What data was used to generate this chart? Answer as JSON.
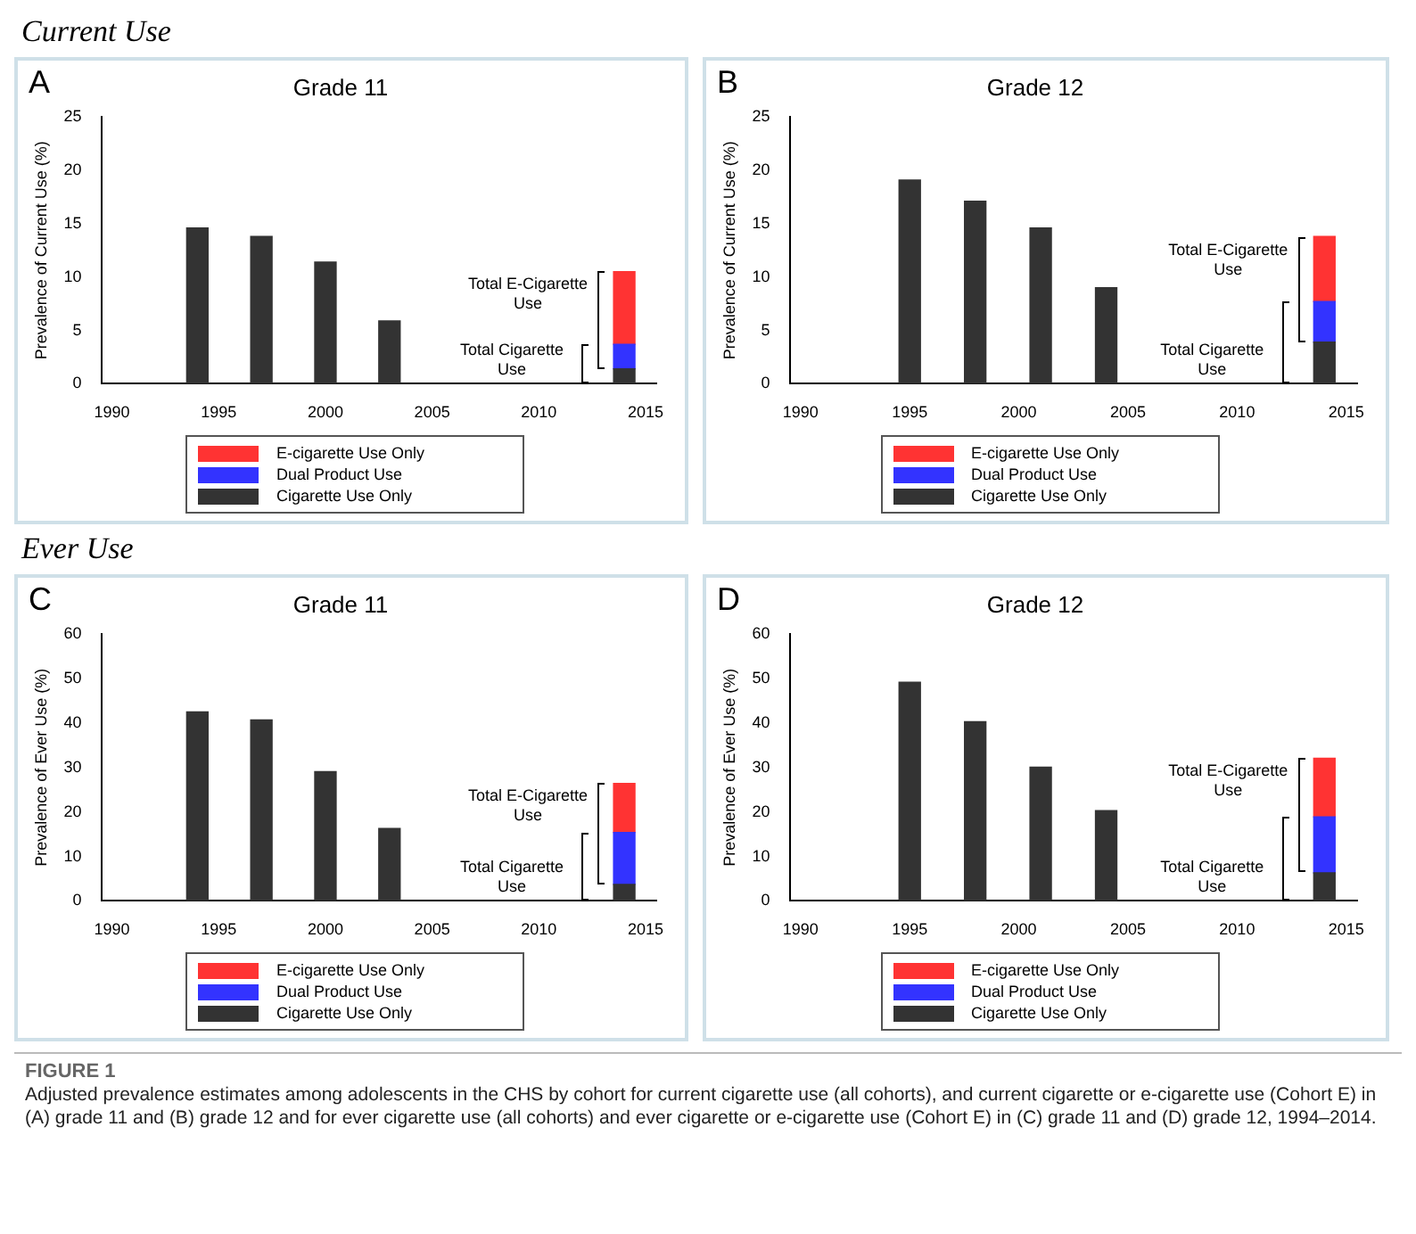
{
  "chart_data": [
    {
      "type": "bar",
      "title": "Grade 11",
      "subtitle": "A",
      "ylabel": "Prevalence of Current Use (%)",
      "stacked": true,
      "legend": "bottom",
      "xlim": [
        1989.5,
        2015.5
      ],
      "xticks": [
        1990,
        1995,
        2000,
        2005,
        2010,
        2015
      ],
      "ylim": [
        0,
        25
      ],
      "yticks": [
        0,
        5,
        10,
        15,
        20,
        25
      ],
      "x": [
        1994,
        1997,
        2000,
        2003,
        2014
      ],
      "series": [
        {
          "name": "Cigarette Use Only",
          "color": "#333333",
          "values": [
            14.6,
            13.8,
            11.4,
            5.9,
            1.4
          ]
        },
        {
          "name": "Dual Product Use",
          "color": "#3333ff",
          "values": [
            null,
            null,
            null,
            null,
            2.3
          ]
        },
        {
          "name": "E-cigarette Use Only",
          "color": "#ff3333",
          "values": [
            null,
            null,
            null,
            null,
            6.8
          ]
        }
      ],
      "annotations": [
        "Current Use",
        "Total E-Cigarette Use",
        "Total Cigarette Use"
      ]
    },
    {
      "type": "bar",
      "title": "Grade 12",
      "subtitle": "B",
      "ylabel": "Prevalence of Current Use (%)",
      "stacked": true,
      "legend": "bottom",
      "xlim": [
        1989.5,
        2015.5
      ],
      "xticks": [
        1990,
        1995,
        2000,
        2005,
        2010,
        2015
      ],
      "ylim": [
        0,
        25
      ],
      "yticks": [
        0,
        5,
        10,
        15,
        20,
        25
      ],
      "x": [
        1995,
        1998,
        2001,
        2004,
        2014
      ],
      "series": [
        {
          "name": "Cigarette Use Only",
          "color": "#333333",
          "values": [
            19.1,
            17.1,
            14.6,
            9.0,
            3.9
          ]
        },
        {
          "name": "Dual Product Use",
          "color": "#3333ff",
          "values": [
            null,
            null,
            null,
            null,
            3.8
          ]
        },
        {
          "name": "E-cigarette Use Only",
          "color": "#ff3333",
          "values": [
            null,
            null,
            null,
            null,
            6.1
          ]
        }
      ],
      "annotations": [
        "Total E-Cigarette Use",
        "Total Cigarette Use"
      ]
    },
    {
      "type": "bar",
      "title": "Grade 11",
      "subtitle": "C",
      "ylabel": "Prevalence of Ever Use (%)",
      "stacked": true,
      "legend": "bottom",
      "xlim": [
        1989.5,
        2015.5
      ],
      "xticks": [
        1990,
        1995,
        2000,
        2005,
        2010,
        2015
      ],
      "ylim": [
        0,
        60
      ],
      "yticks": [
        0,
        10,
        20,
        30,
        40,
        50,
        60
      ],
      "x": [
        1994,
        1997,
        2000,
        2003,
        2014
      ],
      "series": [
        {
          "name": "Cigarette Use Only",
          "color": "#333333",
          "values": [
            42.5,
            40.7,
            29.1,
            16.3,
            3.7
          ]
        },
        {
          "name": "Dual Product Use",
          "color": "#3333ff",
          "values": [
            null,
            null,
            null,
            null,
            11.7
          ]
        },
        {
          "name": "E-cigarette Use Only",
          "color": "#ff3333",
          "values": [
            null,
            null,
            null,
            null,
            11.0
          ]
        }
      ],
      "annotations": [
        "Ever Use",
        "Total E-Cigarette Use",
        "Total Cigarette Use"
      ]
    },
    {
      "type": "bar",
      "title": "Grade 12",
      "subtitle": "D",
      "ylabel": "Prevalence of Ever Use (%)",
      "stacked": true,
      "legend": "bottom",
      "xlim": [
        1989.5,
        2015.5
      ],
      "xticks": [
        1990,
        1995,
        2000,
        2005,
        2010,
        2015
      ],
      "ylim": [
        0,
        60
      ],
      "yticks": [
        0,
        10,
        20,
        30,
        40,
        50,
        60
      ],
      "x": [
        1995,
        1998,
        2001,
        2004,
        2014
      ],
      "series": [
        {
          "name": "Cigarette Use Only",
          "color": "#333333",
          "values": [
            49.2,
            40.3,
            30.1,
            20.3,
            6.3
          ]
        },
        {
          "name": "Dual Product Use",
          "color": "#3333ff",
          "values": [
            null,
            null,
            null,
            null,
            12.6
          ]
        },
        {
          "name": "E-cigarette Use Only",
          "color": "#ff3333",
          "values": [
            null,
            null,
            null,
            null,
            13.2
          ]
        }
      ],
      "annotations": [
        "Total E-Cigarette Use",
        "Total Cigarette Use"
      ]
    },
    {
      "type": "other",
      "title": "FIGURE 1",
      "annotations": [
        "Adjusted prevalence estimates among adolescents in the CHS by cohort for current cigarette use (all cohorts), and current cigarette or e-cigarette use (Cohort E) in (A) grade 11 and (B) grade 12 and for ever cigarette use (all cohorts) and ever cigarette or e-cigarette use (Cohort E) in (C) grade 11 and (D) grade 12, 1994–2014."
      ]
    }
  ]
}
